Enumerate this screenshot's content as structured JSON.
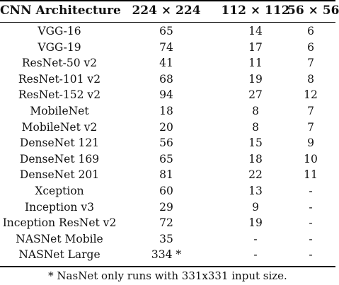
{
  "table": {
    "headers": [
      "CNN Architecture",
      "224 × 224",
      "112 × 112",
      "56 × 56"
    ],
    "rows": [
      [
        "VGG-16",
        "65",
        "14",
        "6"
      ],
      [
        "VGG-19",
        "74",
        "17",
        "6"
      ],
      [
        "ResNet-50 v2",
        "41",
        "11",
        "7"
      ],
      [
        "ResNet-101 v2",
        "68",
        "19",
        "8"
      ],
      [
        "ResNet-152 v2",
        "94",
        "27",
        "12"
      ],
      [
        "MobileNet",
        "18",
        "8",
        "7"
      ],
      [
        "MobileNet v2",
        "20",
        "8",
        "7"
      ],
      [
        "DenseNet 121",
        "56",
        "15",
        "9"
      ],
      [
        "DenseNet 169",
        "65",
        "18",
        "10"
      ],
      [
        "DenseNet 201",
        "81",
        "22",
        "11"
      ],
      [
        "Xception",
        "60",
        "13",
        "-"
      ],
      [
        "Inception v3",
        "29",
        "9",
        "-"
      ],
      [
        "Inception ResNet v2",
        "72",
        "19",
        "-"
      ],
      [
        "NASNet Mobile",
        "35",
        "-",
        "-"
      ],
      [
        "NASNet Large",
        "334 *",
        "-",
        "-"
      ]
    ]
  },
  "footnote": "* NasNet only runs with 331x331 input size."
}
